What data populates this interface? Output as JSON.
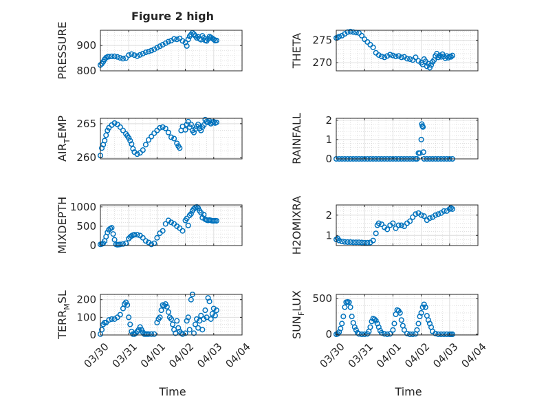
{
  "figure": {
    "title": "Figure 2 high",
    "shared_xlabel": "Time",
    "x_ticks": [
      "03/30",
      "03/31",
      "04/01",
      "04/02",
      "04/03",
      "04/04"
    ],
    "marker_color": "#0072BD"
  },
  "chart_data": [
    {
      "type": "scatter",
      "title": "Figure 2 high",
      "ylabel": "PRESSURE",
      "x_range_days": [
        0,
        5
      ],
      "ylim": [
        800,
        960
      ],
      "yticks": [
        800,
        900
      ],
      "grid": true,
      "x": [
        0,
        0.05,
        0.1,
        0.15,
        0.2,
        0.25,
        0.3,
        0.4,
        0.5,
        0.6,
        0.7,
        0.8,
        0.9,
        1.0,
        1.1,
        1.2,
        1.3,
        1.4,
        1.5,
        1.6,
        1.7,
        1.8,
        1.9,
        2.0,
        2.1,
        2.2,
        2.3,
        2.4,
        2.5,
        2.6,
        2.7,
        2.8,
        2.9,
        3.0,
        3.05,
        3.1,
        3.15,
        3.2,
        3.25,
        3.3,
        3.35,
        3.4,
        3.45,
        3.5,
        3.55,
        3.6,
        3.65,
        3.7,
        3.75,
        3.8,
        3.85,
        3.9,
        3.95,
        4.0,
        4.05,
        4.1
      ],
      "y": [
        823,
        828,
        836,
        845,
        852,
        855,
        856,
        857,
        857,
        855,
        851,
        848,
        850,
        862,
        866,
        862,
        858,
        863,
        868,
        873,
        876,
        880,
        885,
        891,
        897,
        903,
        909,
        915,
        919,
        926,
        924,
        928,
        918,
        912,
        898,
        924,
        936,
        943,
        950,
        945,
        938,
        930,
        934,
        926,
        923,
        938,
        930,
        920,
        918,
        926,
        935,
        932,
        928,
        924,
        919,
        920
      ]
    },
    {
      "type": "scatter",
      "ylabel": "THETA",
      "x_range_days": [
        0,
        5
      ],
      "ylim": [
        268.2,
        277.2
      ],
      "yticks": [
        270,
        275
      ],
      "grid": true,
      "x": [
        0,
        0.05,
        0.1,
        0.2,
        0.3,
        0.4,
        0.5,
        0.6,
        0.7,
        0.8,
        0.9,
        1.0,
        1.1,
        1.2,
        1.3,
        1.4,
        1.5,
        1.6,
        1.7,
        1.8,
        1.9,
        2.0,
        2.1,
        2.2,
        2.3,
        2.4,
        2.5,
        2.6,
        2.7,
        2.8,
        2.9,
        3.0,
        3.05,
        3.1,
        3.15,
        3.2,
        3.25,
        3.3,
        3.35,
        3.4,
        3.45,
        3.5,
        3.55,
        3.6,
        3.65,
        3.7,
        3.75,
        3.8,
        3.85,
        3.9,
        3.95,
        4.0,
        4.05,
        4.1
      ],
      "y": [
        275.5,
        275.6,
        275.8,
        276.0,
        276.4,
        276.8,
        276.9,
        276.8,
        276.7,
        276.6,
        276.0,
        275.2,
        274.6,
        274.0,
        273.4,
        272.2,
        271.7,
        271.4,
        271.2,
        271.5,
        271.8,
        271.6,
        271.4,
        271.5,
        271.2,
        271.3,
        270.9,
        270.8,
        270.6,
        271.2,
        270.4,
        270.0,
        269.6,
        270.8,
        270.3,
        269.2,
        269.8,
        268.9,
        269.5,
        270.2,
        270.6,
        271.5,
        272.0,
        271.2,
        271.6,
        271.3,
        271.9,
        271.4,
        271.0,
        271.5,
        271.1,
        271.4,
        271.3,
        271.6
      ]
    },
    {
      "type": "scatter",
      "ylabel": "AIR_TEMP",
      "x_range_days": [
        0,
        5
      ],
      "ylim": [
        259.8,
        265.8
      ],
      "yticks": [
        260,
        265
      ],
      "grid": true,
      "x": [
        0,
        0.05,
        0.1,
        0.15,
        0.2,
        0.25,
        0.3,
        0.4,
        0.5,
        0.6,
        0.7,
        0.8,
        0.9,
        0.95,
        1.0,
        1.05,
        1.1,
        1.15,
        1.2,
        1.3,
        1.4,
        1.5,
        1.6,
        1.7,
        1.8,
        1.9,
        2.0,
        2.1,
        2.2,
        2.3,
        2.4,
        2.5,
        2.6,
        2.7,
        2.75,
        2.8,
        2.85,
        2.9,
        3.0,
        3.05,
        3.1,
        3.15,
        3.2,
        3.25,
        3.3,
        3.35,
        3.4,
        3.45,
        3.5,
        3.55,
        3.6,
        3.65,
        3.7,
        3.75,
        3.8,
        3.85,
        3.9,
        3.95,
        4.0,
        4.05,
        4.1
      ],
      "y": [
        260.3,
        261.4,
        261.9,
        262.5,
        263.3,
        264.0,
        264.4,
        264.8,
        265.1,
        264.9,
        264.5,
        264.0,
        263.5,
        263.2,
        262.9,
        262.5,
        262.0,
        261.3,
        260.8,
        260.5,
        260.7,
        261.1,
        261.9,
        262.6,
        263.1,
        263.6,
        264.0,
        264.4,
        264.5,
        264.3,
        263.7,
        263.0,
        262.8,
        262.1,
        261.7,
        261.4,
        264.0,
        264.6,
        264.1,
        264.9,
        265.3,
        264.5,
        264.9,
        264.0,
        263.7,
        264.2,
        264.6,
        264.9,
        264.3,
        264.0,
        264.5,
        264.8,
        265.6,
        265.3,
        265.2,
        265.4,
        265.0,
        265.2,
        265.3,
        265.1,
        265.2
      ]
    },
    {
      "type": "scatter",
      "ylabel": "RAINFALL",
      "x_range_days": [
        0,
        5
      ],
      "ylim": [
        0,
        2.1
      ],
      "yticks": [
        0,
        1,
        2
      ],
      "grid": true,
      "x": [
        0,
        0.1,
        0.2,
        0.3,
        0.4,
        0.5,
        0.6,
        0.7,
        0.8,
        0.9,
        1.0,
        1.1,
        1.2,
        1.3,
        1.4,
        1.5,
        1.6,
        1.7,
        1.8,
        1.9,
        2.0,
        2.1,
        2.2,
        2.3,
        2.4,
        2.5,
        2.6,
        2.7,
        2.8,
        2.85,
        2.9,
        2.95,
        3.0,
        3.02,
        3.04,
        3.06,
        3.08,
        3.1,
        3.2,
        3.3,
        3.4,
        3.5,
        3.6,
        3.7,
        3.8,
        3.9,
        4.0,
        4.1
      ],
      "y": [
        0,
        0,
        0,
        0,
        0,
        0,
        0,
        0,
        0,
        0,
        0,
        0,
        0,
        0,
        0,
        0,
        0,
        0,
        0,
        0,
        0,
        0,
        0,
        0,
        0,
        0,
        0,
        0,
        0,
        0,
        0.3,
        0.3,
        1.0,
        1.8,
        1.7,
        1.65,
        0.35,
        0,
        0,
        0,
        0,
        0,
        0,
        0,
        0,
        0,
        0,
        0
      ]
    },
    {
      "type": "scatter",
      "ylabel": "MIXDEPTH",
      "x_range_days": [
        0,
        5
      ],
      "ylim": [
        0,
        1050
      ],
      "yticks": [
        0,
        500,
        1000
      ],
      "grid": true,
      "x": [
        0,
        0.05,
        0.1,
        0.15,
        0.2,
        0.25,
        0.3,
        0.35,
        0.4,
        0.45,
        0.5,
        0.55,
        0.6,
        0.65,
        0.7,
        0.8,
        0.9,
        1.0,
        1.05,
        1.1,
        1.15,
        1.2,
        1.3,
        1.4,
        1.5,
        1.6,
        1.7,
        1.8,
        1.9,
        2.0,
        2.1,
        2.2,
        2.3,
        2.4,
        2.5,
        2.6,
        2.7,
        2.8,
        2.9,
        3.0,
        3.05,
        3.1,
        3.15,
        3.2,
        3.25,
        3.3,
        3.35,
        3.4,
        3.45,
        3.5,
        3.55,
        3.6,
        3.65,
        3.7,
        3.75,
        3.8,
        3.85,
        3.9,
        3.95,
        4.0,
        4.05,
        4.1
      ],
      "y": [
        30,
        40,
        60,
        120,
        230,
        340,
        410,
        440,
        460,
        300,
        150,
        30,
        20,
        25,
        30,
        40,
        60,
        180,
        220,
        250,
        270,
        280,
        280,
        260,
        200,
        120,
        80,
        30,
        60,
        200,
        320,
        380,
        560,
        650,
        600,
        560,
        500,
        450,
        380,
        650,
        700,
        520,
        780,
        820,
        900,
        950,
        980,
        1000,
        970,
        900,
        850,
        720,
        800,
        680,
        660,
        650,
        660,
        650,
        640,
        640,
        645,
        640
      ]
    },
    {
      "type": "scatter",
      "ylabel": "H2OMIXRA",
      "x_range_days": [
        0,
        5
      ],
      "ylim": [
        0.5,
        2.5
      ],
      "yticks": [
        1,
        2
      ],
      "grid": true,
      "x": [
        0,
        0.05,
        0.1,
        0.2,
        0.3,
        0.4,
        0.5,
        0.6,
        0.7,
        0.8,
        0.9,
        1.0,
        1.1,
        1.2,
        1.3,
        1.4,
        1.45,
        1.5,
        1.6,
        1.7,
        1.8,
        1.9,
        2.0,
        2.1,
        2.2,
        2.3,
        2.4,
        2.5,
        2.6,
        2.7,
        2.8,
        2.9,
        3.0,
        3.1,
        3.2,
        3.3,
        3.4,
        3.5,
        3.6,
        3.7,
        3.8,
        3.9,
        4.0,
        4.05,
        4.1
      ],
      "y": [
        0.8,
        0.85,
        0.75,
        0.7,
        0.68,
        0.67,
        0.67,
        0.66,
        0.66,
        0.66,
        0.65,
        0.64,
        0.64,
        0.65,
        0.75,
        1.1,
        1.5,
        1.6,
        1.55,
        1.4,
        1.3,
        1.5,
        1.6,
        1.35,
        1.5,
        1.5,
        1.45,
        1.6,
        1.7,
        1.9,
        2.05,
        2.1,
        2.0,
        1.95,
        1.75,
        1.85,
        1.9,
        2.0,
        2.05,
        2.1,
        2.2,
        2.2,
        2.3,
        2.35,
        2.3
      ]
    },
    {
      "type": "scatter",
      "ylabel": "TERR_MSL",
      "x_range_days": [
        0,
        5
      ],
      "ylim": [
        0,
        230
      ],
      "yticks": [
        0,
        100,
        200
      ],
      "grid": true,
      "x": [
        0,
        0.05,
        0.1,
        0.15,
        0.2,
        0.3,
        0.4,
        0.5,
        0.6,
        0.7,
        0.8,
        0.85,
        0.9,
        0.95,
        1.0,
        1.05,
        1.1,
        1.15,
        1.2,
        1.25,
        1.3,
        1.35,
        1.4,
        1.45,
        1.5,
        1.55,
        1.6,
        1.65,
        1.7,
        1.8,
        1.9,
        2.0,
        2.05,
        2.1,
        2.15,
        2.2,
        2.25,
        2.3,
        2.35,
        2.4,
        2.45,
        2.5,
        2.55,
        2.6,
        2.65,
        2.7,
        2.75,
        2.8,
        2.85,
        2.9,
        3.0,
        3.05,
        3.1,
        3.15,
        3.2,
        3.25,
        3.3,
        3.35,
        3.4,
        3.45,
        3.5,
        3.55,
        3.6,
        3.65,
        3.7,
        3.75,
        3.8,
        3.85,
        3.9,
        3.95,
        4.0,
        4.05,
        4.1
      ],
      "y": [
        5,
        30,
        60,
        70,
        70,
        85,
        90,
        90,
        100,
        115,
        150,
        175,
        185,
        170,
        100,
        60,
        20,
        5,
        5,
        10,
        20,
        30,
        45,
        30,
        15,
        5,
        5,
        5,
        5,
        5,
        5,
        70,
        90,
        100,
        140,
        170,
        165,
        175,
        160,
        130,
        100,
        90,
        60,
        30,
        10,
        80,
        40,
        20,
        10,
        5,
        10,
        80,
        100,
        30,
        200,
        230,
        10,
        60,
        90,
        40,
        80,
        110,
        30,
        90,
        140,
        100,
        210,
        190,
        90,
        120,
        150,
        110,
        140
      ]
    },
    {
      "type": "scatter",
      "ylabel": "SUN_FLUX",
      "x_range_days": [
        0,
        5
      ],
      "ylim": [
        -10,
        560
      ],
      "yticks": [
        0,
        500
      ],
      "grid": true,
      "x": [
        0,
        0.05,
        0.1,
        0.15,
        0.2,
        0.25,
        0.3,
        0.35,
        0.4,
        0.45,
        0.5,
        0.55,
        0.6,
        0.65,
        0.7,
        0.75,
        0.8,
        0.9,
        1.0,
        1.1,
        1.15,
        1.2,
        1.25,
        1.3,
        1.35,
        1.4,
        1.45,
        1.5,
        1.55,
        1.6,
        1.7,
        1.8,
        1.9,
        2.0,
        2.05,
        2.1,
        2.15,
        2.2,
        2.25,
        2.3,
        2.35,
        2.4,
        2.5,
        2.6,
        2.7,
        2.8,
        2.85,
        2.9,
        2.95,
        3.0,
        3.05,
        3.1,
        3.15,
        3.2,
        3.25,
        3.3,
        3.35,
        3.4,
        3.5,
        3.6,
        3.7,
        3.8,
        3.9,
        4.0,
        4.05,
        4.1
      ],
      "y": [
        0,
        5,
        30,
        80,
        150,
        250,
        380,
        450,
        455,
        450,
        380,
        250,
        160,
        100,
        60,
        20,
        5,
        0,
        0,
        5,
        40,
        100,
        180,
        220,
        210,
        190,
        150,
        100,
        50,
        20,
        5,
        0,
        5,
        60,
        150,
        280,
        340,
        330,
        300,
        200,
        120,
        60,
        10,
        0,
        0,
        5,
        60,
        150,
        250,
        300,
        380,
        420,
        380,
        260,
        200,
        150,
        100,
        40,
        10,
        0,
        0,
        0,
        0,
        0,
        0,
        0
      ]
    }
  ]
}
